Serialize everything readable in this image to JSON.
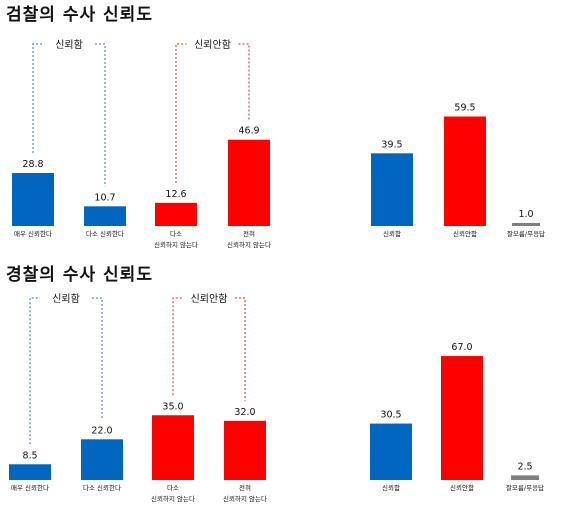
{
  "chart_data": [
    {
      "type": "bar",
      "title": "검찰의 수사 신뢰도",
      "ylim": [
        0,
        70
      ],
      "grid": false,
      "colors": {
        "trust": "#0066bf",
        "distrust": "#ff0000",
        "other": "#7f7f7f"
      },
      "groups": [
        {
          "label": "신뢰함",
          "color": "#2b73c0",
          "category_indices": [
            0,
            1
          ]
        },
        {
          "label": "신뢰안함",
          "color": "#e01e1e",
          "category_indices": [
            2,
            3
          ]
        }
      ],
      "detail": {
        "categories": [
          {
            "lines": [
              "매우 신뢰한다"
            ]
          },
          {
            "lines": [
              "다소 신뢰한다"
            ]
          },
          {
            "lines": [
              "다소",
              "신뢰하지 않는다"
            ]
          },
          {
            "lines": [
              "전혀",
              "신뢰하지 않는다"
            ]
          }
        ],
        "values": [
          28.8,
          10.7,
          12.6,
          46.9
        ],
        "value_labels": [
          "28.8",
          "10.7",
          "12.6",
          "46.9"
        ],
        "color_keys": [
          "trust",
          "trust",
          "distrust",
          "distrust"
        ]
      },
      "summary": {
        "categories": [
          {
            "lines": [
              "신뢰함"
            ]
          },
          {
            "lines": [
              "신뢰안함"
            ]
          },
          {
            "lines": [
              "잘모름/무응답"
            ]
          }
        ],
        "values": [
          39.5,
          59.5,
          1.0
        ],
        "value_labels": [
          "39.5",
          "59.5",
          "1.0"
        ],
        "color_keys": [
          "trust",
          "distrust",
          "other"
        ]
      }
    },
    {
      "type": "bar",
      "title": "경찰의 수사 신뢰도",
      "ylim": [
        0,
        70
      ],
      "grid": false,
      "colors": {
        "trust": "#0066bf",
        "distrust": "#ff0000",
        "other": "#7f7f7f"
      },
      "groups": [
        {
          "label": "신뢰함",
          "color": "#2b73c0",
          "category_indices": [
            0,
            1
          ]
        },
        {
          "label": "신뢰안함",
          "color": "#e01e1e",
          "category_indices": [
            2,
            3
          ]
        }
      ],
      "detail": {
        "categories": [
          {
            "lines": [
              "매우 신뢰한다"
            ]
          },
          {
            "lines": [
              "다소 신뢰한다"
            ]
          },
          {
            "lines": [
              "다소",
              "신뢰하지 않는다"
            ]
          },
          {
            "lines": [
              "전혀",
              "신뢰하지 않는다"
            ]
          }
        ],
        "values": [
          8.5,
          22.0,
          35.0,
          32.0
        ],
        "value_labels": [
          "8.5",
          "22.0",
          "35.0",
          "32.0"
        ],
        "color_keys": [
          "trust",
          "trust",
          "distrust",
          "distrust"
        ]
      },
      "summary": {
        "categories": [
          {
            "lines": [
              "신뢰함"
            ]
          },
          {
            "lines": [
              "신뢰안함"
            ]
          },
          {
            "lines": [
              "잘모름/무응답"
            ]
          }
        ],
        "values": [
          30.5,
          67.0,
          2.5
        ],
        "value_labels": [
          "30.5",
          "67.0",
          "2.5"
        ],
        "color_keys": [
          "trust",
          "distrust",
          "other"
        ]
      }
    }
  ]
}
